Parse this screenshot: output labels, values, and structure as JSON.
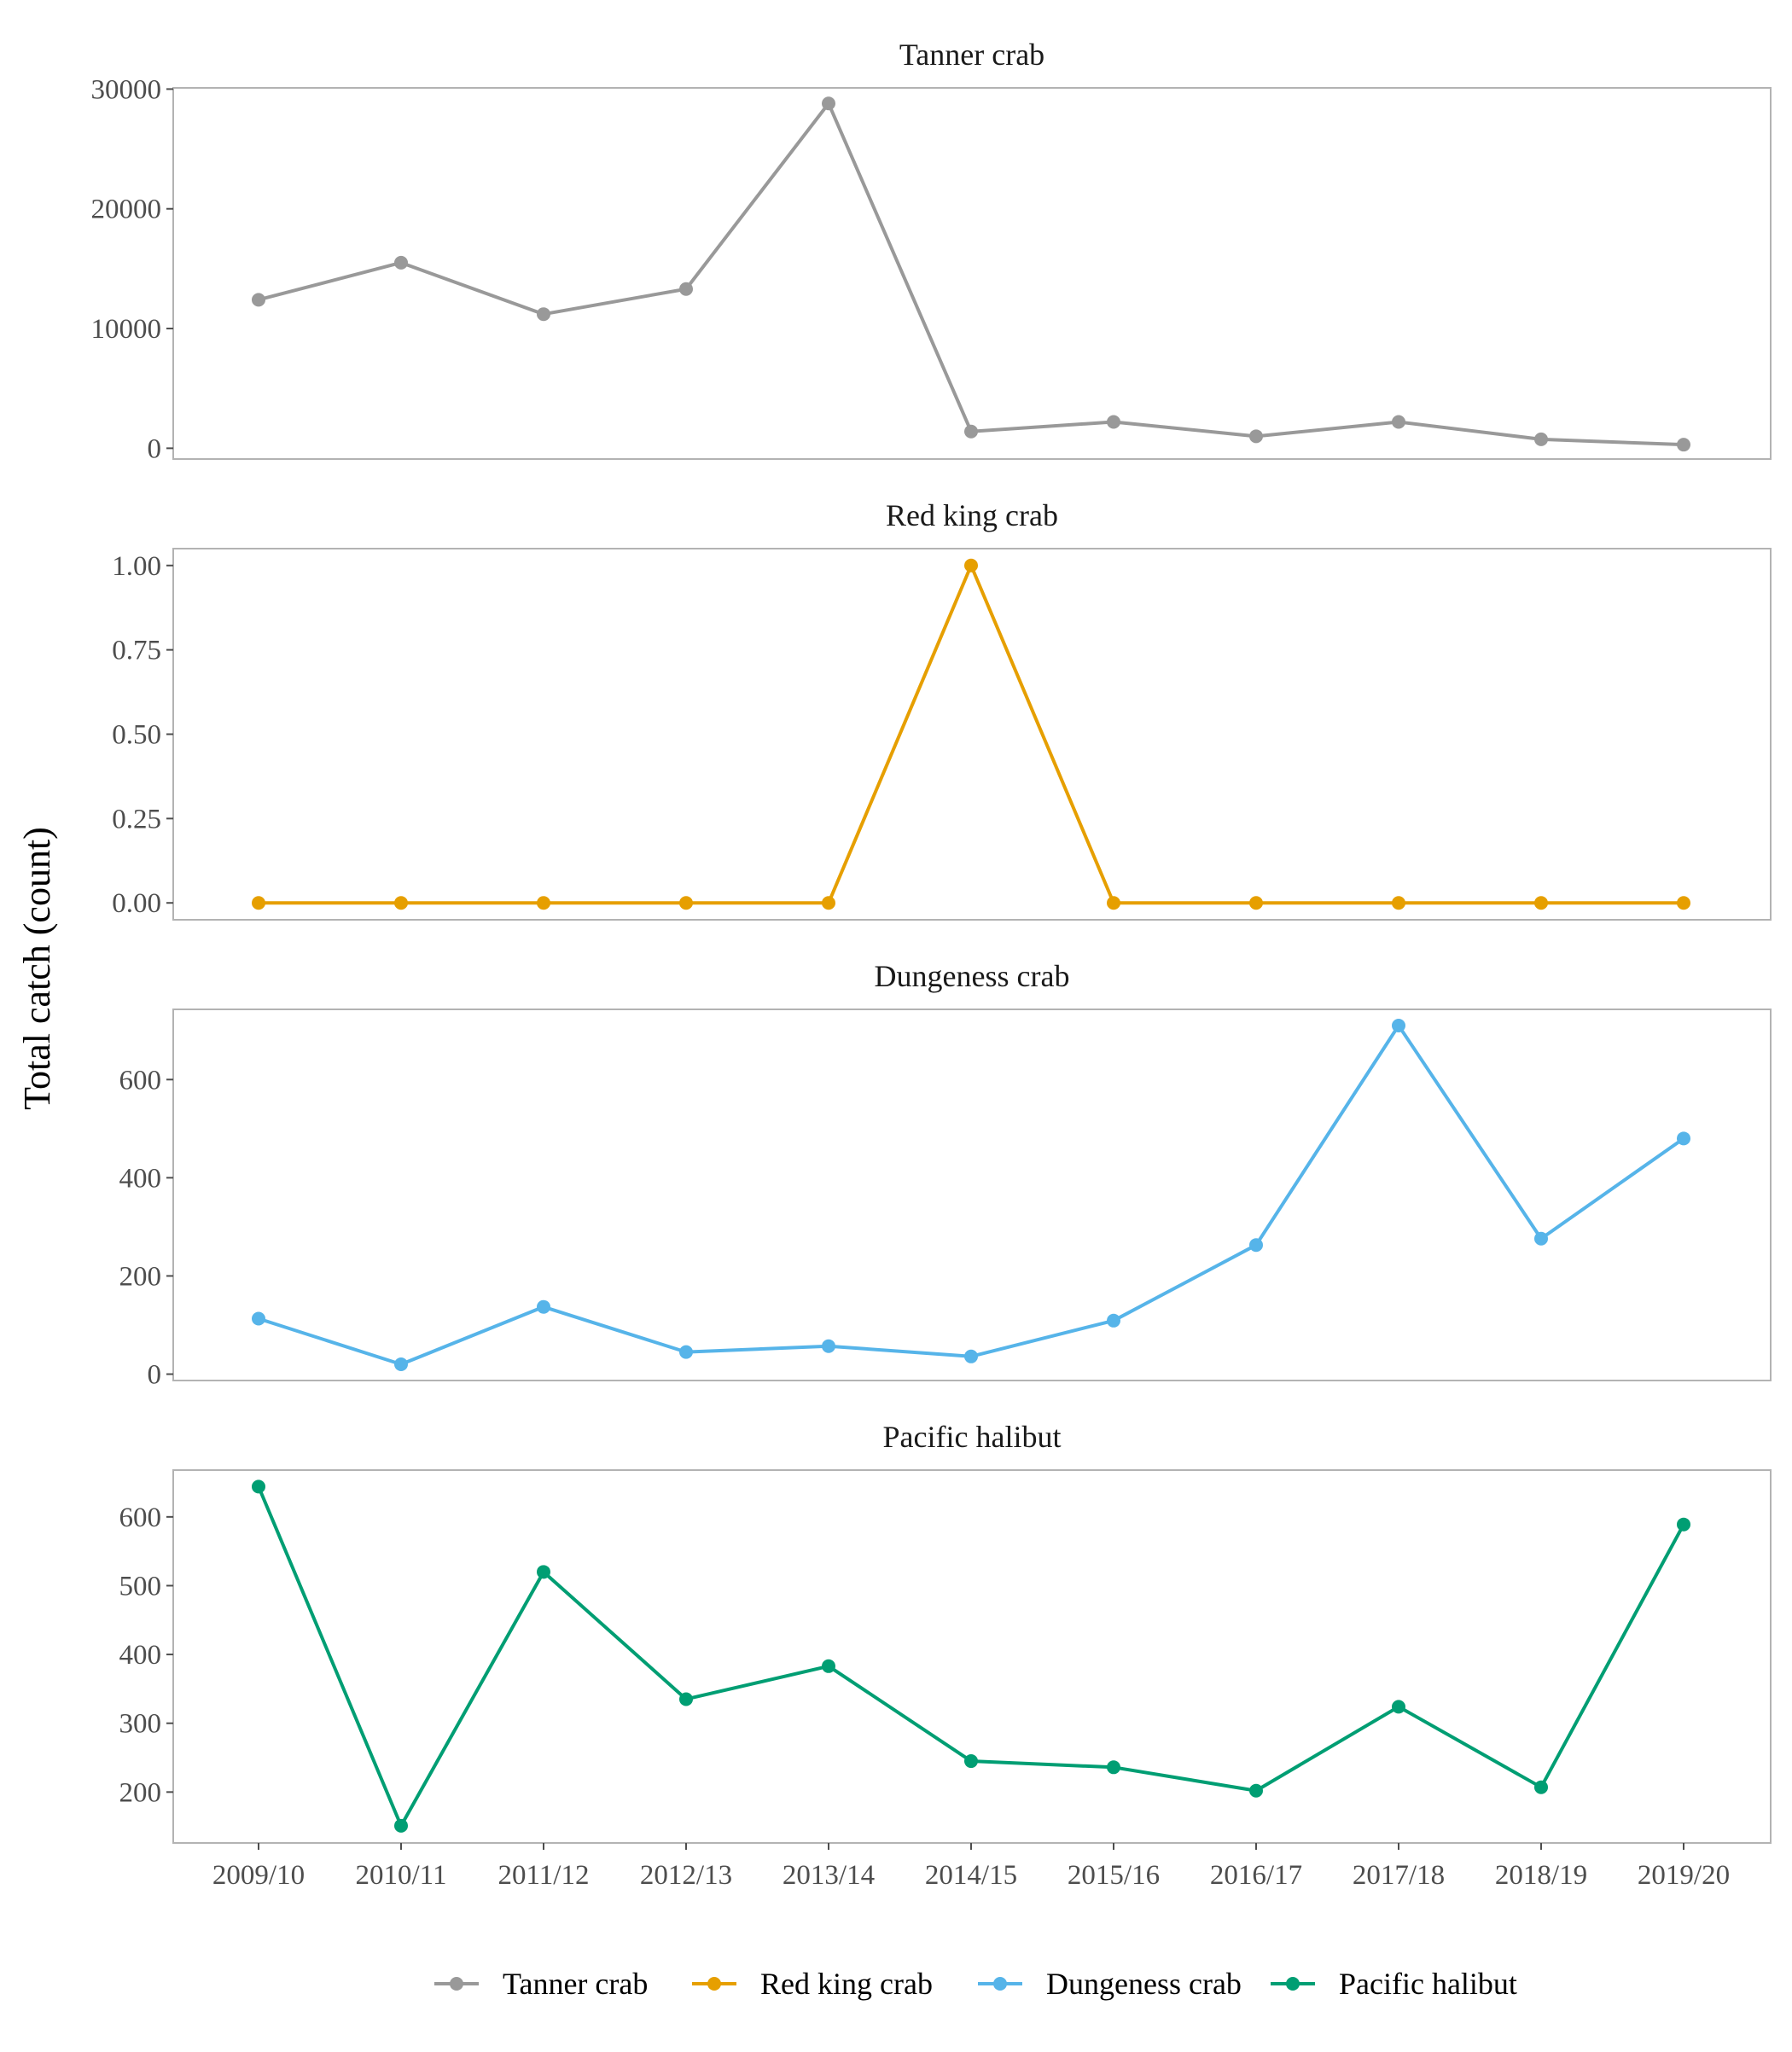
{
  "y_axis_title": "Total catch (count)",
  "colors": {
    "Tanner crab": "#999999",
    "Red king crab": "#E69F00",
    "Dungeness crab": "#56B4E9",
    "Pacific halibut": "#009E73",
    "frame": "#b3b3b3",
    "tick_text": "#4d4d4d"
  },
  "legend": {
    "position": "bottom",
    "entries": [
      "Tanner crab",
      "Red king crab",
      "Dungeness crab",
      "Pacific halibut"
    ]
  },
  "chart_data": [
    {
      "type": "line",
      "title": "Tanner crab",
      "x": [
        "2009/10",
        "2010/11",
        "2011/12",
        "2012/13",
        "2013/14",
        "2014/15",
        "2015/16",
        "2016/17",
        "2017/18",
        "2018/19",
        "2019/20"
      ],
      "series": [
        {
          "name": "Tanner crab",
          "values": [
            12400,
            15500,
            11200,
            13300,
            28800,
            1400,
            2200,
            1000,
            2200,
            750,
            300
          ]
        }
      ],
      "ylim": [
        -900,
        30100
      ],
      "yticks": [
        0,
        10000,
        20000,
        30000
      ],
      "ytick_labels": [
        "0",
        "10000",
        "20000",
        "30000"
      ],
      "grid": false
    },
    {
      "type": "line",
      "title": "Red king crab",
      "x": [
        "2009/10",
        "2010/11",
        "2011/12",
        "2012/13",
        "2013/14",
        "2014/15",
        "2015/16",
        "2016/17",
        "2017/18",
        "2018/19",
        "2019/20"
      ],
      "series": [
        {
          "name": "Red king crab",
          "values": [
            0,
            0,
            0,
            0,
            0,
            1,
            0,
            0,
            0,
            0,
            0
          ]
        }
      ],
      "ylim": [
        -0.05,
        1.05
      ],
      "yticks": [
        0,
        0.25,
        0.5,
        0.75,
        1.0
      ],
      "ytick_labels": [
        "0.00",
        "0.25",
        "0.50",
        "0.75",
        "1.00"
      ],
      "grid": false
    },
    {
      "type": "line",
      "title": "Dungeness crab",
      "x": [
        "2009/10",
        "2010/11",
        "2011/12",
        "2012/13",
        "2013/14",
        "2014/15",
        "2015/16",
        "2016/17",
        "2017/18",
        "2018/19",
        "2019/20"
      ],
      "series": [
        {
          "name": "Dungeness crab",
          "values": [
            113,
            20,
            137,
            45,
            57,
            36,
            109,
            263,
            710,
            276,
            480
          ]
        }
      ],
      "ylim": [
        -13,
        743
      ],
      "yticks": [
        0,
        200,
        400,
        600
      ],
      "ytick_labels": [
        "0",
        "200",
        "400",
        "600"
      ],
      "grid": false
    },
    {
      "type": "line",
      "title": "Pacific halibut",
      "x": [
        "2009/10",
        "2010/11",
        "2011/12",
        "2012/13",
        "2013/14",
        "2014/15",
        "2015/16",
        "2016/17",
        "2017/18",
        "2018/19",
        "2019/20"
      ],
      "series": [
        {
          "name": "Pacific halibut",
          "values": [
            644,
            151,
            520,
            335,
            383,
            245,
            236,
            202,
            324,
            207,
            589
          ]
        }
      ],
      "ylim": [
        126,
        668
      ],
      "yticks": [
        200,
        300,
        400,
        500,
        600
      ],
      "ytick_labels": [
        "200",
        "300",
        "400",
        "500",
        "600"
      ],
      "grid": false
    }
  ]
}
